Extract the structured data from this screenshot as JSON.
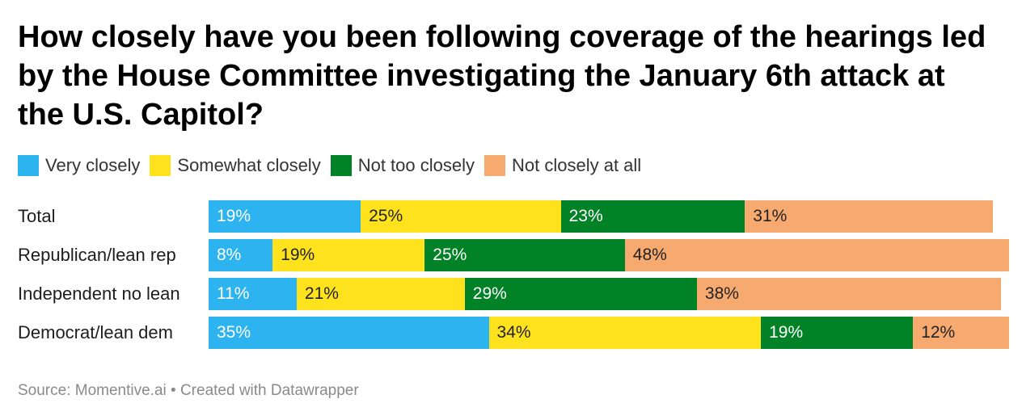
{
  "chart_data": {
    "type": "bar",
    "orientation": "horizontal",
    "stacked": true,
    "title": "How closely have you been following coverage of the hearings led by the House Committee investigating the January 6th attack at the U.S. Capitol?",
    "categories": [
      "Total",
      "Republican/lean rep",
      "Independent no lean",
      "Democrat/lean dem"
    ],
    "series": [
      {
        "name": "Very closely",
        "color": "#2db3f0",
        "text_color": "#ffffff",
        "values": [
          19,
          8,
          11,
          35
        ]
      },
      {
        "name": "Somewhat closely",
        "color": "#fde21d",
        "text_color": "#222222",
        "values": [
          25,
          19,
          21,
          34
        ]
      },
      {
        "name": "Not too closely",
        "color": "#018226",
        "text_color": "#ffffff",
        "values": [
          23,
          25,
          29,
          19
        ]
      },
      {
        "name": "Not closely at all",
        "color": "#f7aa6f",
        "text_color": "#222222",
        "values": [
          31,
          48,
          38,
          12
        ]
      }
    ],
    "value_suffix": "%",
    "xlim": [
      0,
      100
    ],
    "legend_position": "top-left",
    "grid": false
  },
  "source": "Source: Momentive.ai • Created with Datawrapper"
}
